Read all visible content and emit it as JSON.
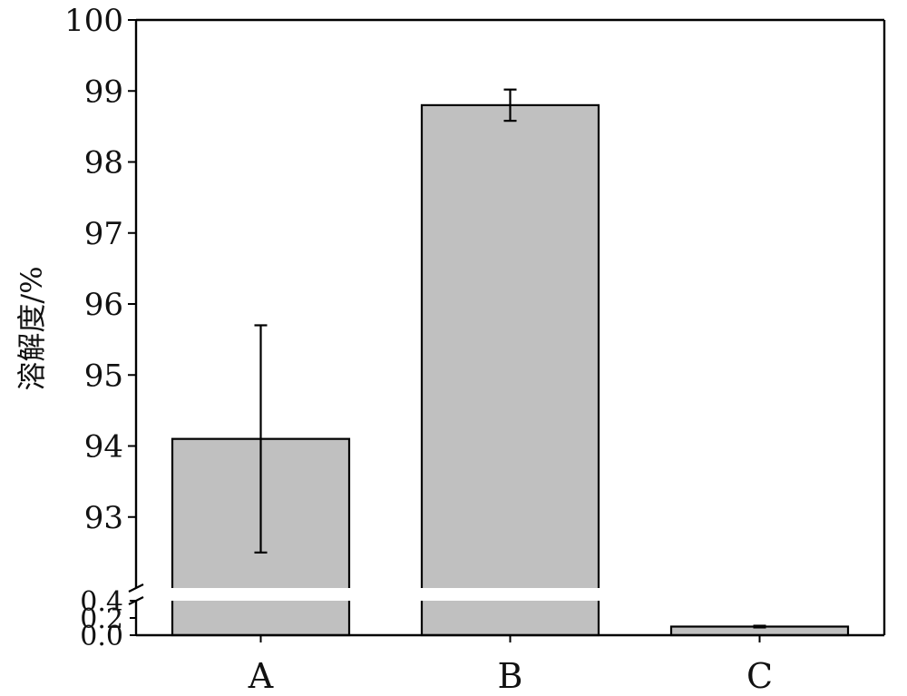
{
  "chart_data": {
    "type": "bar",
    "title": "",
    "xlabel": "",
    "ylabel": "溶解度/%",
    "categories": [
      "A",
      "B",
      "C"
    ],
    "values": [
      94.1,
      98.8,
      0.1
    ],
    "errors": [
      1.6,
      0.22,
      0.01
    ],
    "axis_break": true,
    "upper_segment": {
      "ylim": [
        92.0,
        100.0
      ],
      "ticks": [
        93,
        94,
        95,
        96,
        97,
        98,
        99,
        100
      ],
      "tick_labels": [
        "93",
        "94",
        "95",
        "96",
        "97",
        "98",
        "99",
        "100"
      ]
    },
    "lower_segment": {
      "ylim": [
        0.0,
        0.4
      ],
      "ticks": [
        0.0,
        0.2,
        0.4
      ],
      "tick_labels": [
        "0.0",
        "0.2",
        "0.4"
      ]
    },
    "bar_color": "#c0c0c0",
    "edge_color": "#000000",
    "grid": false,
    "legend": "none"
  }
}
